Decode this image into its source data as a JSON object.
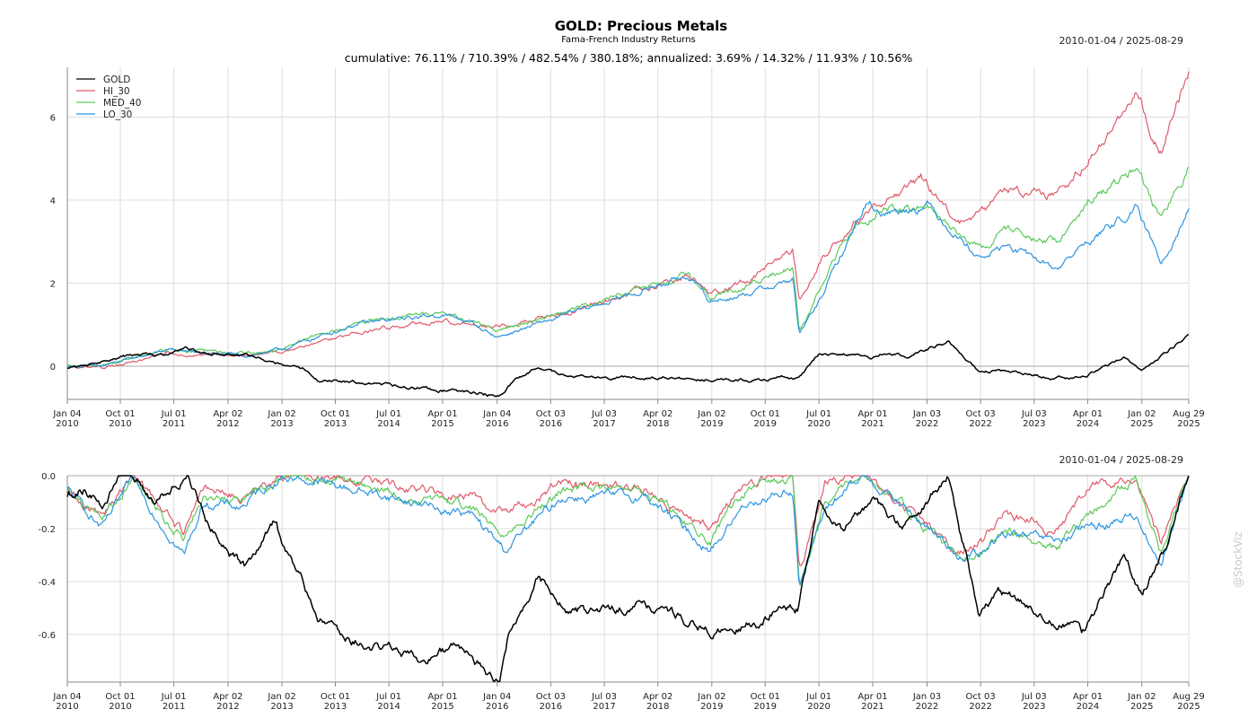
{
  "header": {
    "title": "GOLD: Precious Metals",
    "subtitle": "Fama-French Industry Returns",
    "date_range": "2010-01-04 / 2025-08-29",
    "stats": "cumulative: 76.11% / 710.39% / 482.54% / 380.18%; annualized: 3.69% / 14.32% / 11.93% / 10.56%"
  },
  "watermark": "@StockViz",
  "colors": {
    "GOLD": "#000000",
    "HI_30": "#e05a6a",
    "MED_40": "#5cc95a",
    "LO_30": "#2b95e0",
    "grid": "#dddddd",
    "axis": "#888888"
  },
  "x_ticks": [
    {
      "d": "2010-01-04",
      "l1": "Jan 04",
      "l2": "2010"
    },
    {
      "d": "2010-10-01",
      "l1": "Oct 01",
      "l2": "2010"
    },
    {
      "d": "2011-07-01",
      "l1": "Jul 01",
      "l2": "2011"
    },
    {
      "d": "2012-04-02",
      "l1": "Apr 02",
      "l2": "2012"
    },
    {
      "d": "2013-01-02",
      "l1": "Jan 02",
      "l2": "2013"
    },
    {
      "d": "2013-10-01",
      "l1": "Oct 01",
      "l2": "2013"
    },
    {
      "d": "2014-07-01",
      "l1": "Jul 01",
      "l2": "2014"
    },
    {
      "d": "2015-04-01",
      "l1": "Apr 01",
      "l2": "2015"
    },
    {
      "d": "2016-01-04",
      "l1": "Jan 04",
      "l2": "2016"
    },
    {
      "d": "2016-10-03",
      "l1": "Oct 03",
      "l2": "2016"
    },
    {
      "d": "2017-07-03",
      "l1": "Jul 03",
      "l2": "2017"
    },
    {
      "d": "2018-04-02",
      "l1": "Apr 02",
      "l2": "2018"
    },
    {
      "d": "2019-01-02",
      "l1": "Jan 02",
      "l2": "2019"
    },
    {
      "d": "2019-10-01",
      "l1": "Oct 01",
      "l2": "2019"
    },
    {
      "d": "2020-07-01",
      "l1": "Jul 01",
      "l2": "2020"
    },
    {
      "d": "2021-04-01",
      "l1": "Apr 01",
      "l2": "2021"
    },
    {
      "d": "2022-01-03",
      "l1": "Jan 03",
      "l2": "2022"
    },
    {
      "d": "2022-10-03",
      "l1": "Oct 03",
      "l2": "2022"
    },
    {
      "d": "2023-07-03",
      "l1": "Jul 03",
      "l2": "2023"
    },
    {
      "d": "2024-04-01",
      "l1": "Apr 01",
      "l2": "2024"
    },
    {
      "d": "2025-01-02",
      "l1": "Jan 02",
      "l2": "2025"
    },
    {
      "d": "2025-08-29",
      "l1": "Aug 29",
      "l2": "2025"
    }
  ],
  "chart_data": [
    {
      "type": "line",
      "name": "cumulative",
      "x_range": [
        "2010-01-04",
        "2025-08-29"
      ],
      "ylim": [
        -0.8,
        7.2
      ],
      "yticks": [
        0,
        2,
        4,
        6
      ],
      "ytick_labels": [
        "0",
        "2",
        "4",
        "6"
      ],
      "grid": true,
      "legend": "top-left",
      "series": [
        {
          "name": "GOLD",
          "x": [
            "2010-01-04",
            "2010-07-01",
            "2011-01-03",
            "2011-06-01",
            "2011-09-01",
            "2012-01-03",
            "2012-07-02",
            "2013-01-02",
            "2013-04-15",
            "2013-07-01",
            "2014-01-02",
            "2014-06-02",
            "2014-12-01",
            "2015-06-01",
            "2015-12-01",
            "2016-01-15",
            "2016-03-01",
            "2016-08-01",
            "2016-12-15",
            "2017-06-01",
            "2018-01-02",
            "2018-09-01",
            "2019-01-02",
            "2019-09-03",
            "2020-01-02",
            "2020-03-16",
            "2020-07-01",
            "2020-11-02",
            "2021-04-01",
            "2021-06-01",
            "2021-10-01",
            "2022-04-18",
            "2022-09-27",
            "2023-01-03",
            "2023-07-03",
            "2023-10-02",
            "2024-01-02",
            "2024-04-01",
            "2024-10-01",
            "2025-01-02",
            "2025-04-21",
            "2025-08-29"
          ],
          "y": [
            -0.05,
            0.1,
            0.3,
            0.25,
            0.45,
            0.3,
            0.25,
            0.05,
            -0.05,
            -0.3,
            -0.4,
            -0.45,
            -0.55,
            -0.6,
            -0.7,
            -0.68,
            -0.45,
            0.0,
            -0.25,
            -0.3,
            -0.25,
            -0.3,
            -0.3,
            -0.35,
            -0.25,
            -0.3,
            0.3,
            0.3,
            0.2,
            0.35,
            0.25,
            0.6,
            -0.15,
            -0.1,
            -0.2,
            -0.3,
            -0.3,
            -0.2,
            0.2,
            -0.1,
            0.3,
            0.76
          ]
        },
        {
          "name": "HI_30",
          "x": [
            "2010-01-04",
            "2010-07-01",
            "2011-06-01",
            "2012-01-03",
            "2012-07-02",
            "2013-01-02",
            "2014-01-02",
            "2015-04-01",
            "2015-08-24",
            "2016-01-04",
            "2017-01-03",
            "2018-01-02",
            "2018-09-04",
            "2018-12-24",
            "2019-07-01",
            "2020-02-19",
            "2020-03-23",
            "2020-07-01",
            "2021-01-04",
            "2021-12-01",
            "2022-06-16",
            "2022-10-03",
            "2023-02-01",
            "2023-10-27",
            "2024-04-01",
            "2024-12-02",
            "2025-04-08",
            "2025-08-29"
          ],
          "y": [
            0.0,
            -0.05,
            0.3,
            0.3,
            0.25,
            0.35,
            0.8,
            1.1,
            1.0,
            0.95,
            1.3,
            1.85,
            2.2,
            1.7,
            2.05,
            2.8,
            1.55,
            2.5,
            3.5,
            4.6,
            3.4,
            3.7,
            4.2,
            4.1,
            5.0,
            6.6,
            5.2,
            7.1
          ]
        },
        {
          "name": "MED_40",
          "x": [
            "2010-01-04",
            "2010-07-01",
            "2011-06-01",
            "2012-01-03",
            "2012-07-02",
            "2013-01-02",
            "2014-01-02",
            "2015-04-01",
            "2015-08-24",
            "2016-01-04",
            "2017-01-03",
            "2018-01-02",
            "2018-09-04",
            "2018-12-24",
            "2019-07-01",
            "2020-02-19",
            "2020-03-23",
            "2020-07-01",
            "2021-01-04",
            "2021-06-01",
            "2022-01-03",
            "2022-10-03",
            "2023-02-01",
            "2023-10-27",
            "2024-04-01",
            "2024-12-02",
            "2025-04-08",
            "2025-08-29"
          ],
          "y": [
            0.0,
            0.0,
            0.4,
            0.35,
            0.3,
            0.4,
            1.05,
            1.3,
            1.1,
            0.85,
            1.35,
            1.85,
            2.25,
            1.65,
            1.95,
            2.4,
            0.8,
            1.8,
            3.4,
            3.8,
            3.9,
            2.8,
            3.3,
            3.0,
            4.0,
            4.8,
            3.5,
            4.8
          ]
        },
        {
          "name": "LO_30",
          "x": [
            "2010-01-04",
            "2010-07-01",
            "2011-06-01",
            "2012-01-03",
            "2012-07-02",
            "2013-01-02",
            "2014-01-02",
            "2015-04-01",
            "2015-08-24",
            "2016-01-04",
            "2017-01-03",
            "2018-01-02",
            "2018-09-04",
            "2018-12-24",
            "2019-07-01",
            "2020-02-19",
            "2020-03-23",
            "2020-07-01",
            "2021-01-04",
            "2021-03-01",
            "2021-06-01",
            "2022-01-03",
            "2022-10-03",
            "2023-02-01",
            "2023-10-27",
            "2024-04-01",
            "2024-12-02",
            "2025-04-08",
            "2025-08-29"
          ],
          "y": [
            0.0,
            0.0,
            0.4,
            0.3,
            0.25,
            0.4,
            1.0,
            1.25,
            1.05,
            0.7,
            1.25,
            1.8,
            2.2,
            1.55,
            1.75,
            2.1,
            0.75,
            1.55,
            3.4,
            3.95,
            3.7,
            3.9,
            2.6,
            2.9,
            2.35,
            3.0,
            3.8,
            2.5,
            3.8
          ]
        }
      ]
    },
    {
      "type": "line",
      "name": "drawdown",
      "x_range": [
        "2010-01-04",
        "2025-08-29"
      ],
      "ylim": [
        -0.78,
        0.0
      ],
      "yticks": [
        0.0,
        -0.2,
        -0.4,
        -0.6
      ],
      "ytick_labels": [
        "0.0",
        "-0.2",
        "-0.4",
        "-0.6"
      ],
      "grid": true,
      "series": [
        {
          "name": "GOLD",
          "x": [
            "2010-01-04",
            "2010-04-01",
            "2010-07-01",
            "2010-10-01",
            "2011-01-03",
            "2011-04-01",
            "2011-06-01",
            "2011-09-06",
            "2012-01-03",
            "2012-04-02",
            "2012-07-02",
            "2012-12-03",
            "2013-01-02",
            "2013-04-15",
            "2013-07-01",
            "2014-01-02",
            "2014-07-01",
            "2015-01-02",
            "2015-06-01",
            "2015-12-01",
            "2016-01-15",
            "2016-03-01",
            "2016-08-01",
            "2016-12-15",
            "2017-06-01",
            "2018-01-02",
            "2018-09-03",
            "2019-01-02",
            "2019-09-03",
            "2020-01-02",
            "2020-03-16",
            "2020-07-01",
            "2020-11-02",
            "2021-04-01",
            "2021-09-01",
            "2022-04-18",
            "2022-09-27",
            "2023-01-03",
            "2023-07-03",
            "2023-10-02",
            "2024-01-02",
            "2024-03-01",
            "2024-10-01",
            "2025-01-02",
            "2025-04-21",
            "2025-08-29"
          ],
          "y": [
            -0.08,
            -0.05,
            -0.12,
            0.0,
            -0.02,
            -0.1,
            -0.05,
            0.0,
            -0.2,
            -0.3,
            -0.35,
            -0.16,
            -0.25,
            -0.4,
            -0.55,
            -0.62,
            -0.65,
            -0.7,
            -0.65,
            -0.75,
            -0.78,
            -0.6,
            -0.38,
            -0.5,
            -0.52,
            -0.48,
            -0.55,
            -0.58,
            -0.55,
            -0.48,
            -0.5,
            -0.1,
            -0.2,
            -0.1,
            -0.2,
            0.0,
            -0.52,
            -0.45,
            -0.5,
            -0.55,
            -0.55,
            -0.6,
            -0.3,
            -0.45,
            -0.3,
            0.0
          ]
        },
        {
          "name": "HI_30",
          "x": [
            "2010-01-04",
            "2010-07-01",
            "2010-12-01",
            "2011-08-22",
            "2011-12-01",
            "2012-06-01",
            "2013-01-02",
            "2014-01-02",
            "2015-08-24",
            "2016-02-11",
            "2016-12-01",
            "2018-02-08",
            "2018-12-24",
            "2019-07-01",
            "2020-02-19",
            "2020-03-23",
            "2020-08-03",
            "2021-03-01",
            "2022-06-16",
            "2022-10-12",
            "2023-02-01",
            "2023-10-27",
            "2024-04-01",
            "2024-12-02",
            "2025-04-08",
            "2025-08-29"
          ],
          "y": [
            -0.05,
            -0.15,
            0.0,
            -0.22,
            -0.05,
            -0.08,
            0.0,
            -0.02,
            -0.08,
            -0.15,
            -0.02,
            -0.05,
            -0.2,
            -0.02,
            0.0,
            -0.38,
            -0.03,
            0.0,
            -0.28,
            -0.25,
            -0.15,
            -0.2,
            -0.05,
            0.0,
            -0.25,
            0.0
          ]
        },
        {
          "name": "MED_40",
          "x": [
            "2010-01-04",
            "2010-07-01",
            "2010-12-01",
            "2011-08-22",
            "2011-12-01",
            "2012-06-01",
            "2013-01-02",
            "2014-01-02",
            "2015-08-24",
            "2016-02-11",
            "2016-12-01",
            "2018-02-08",
            "2018-12-24",
            "2019-07-01",
            "2020-02-19",
            "2020-03-23",
            "2020-08-03",
            "2021-03-01",
            "2022-06-16",
            "2022-10-12",
            "2023-02-01",
            "2023-10-27",
            "2024-04-01",
            "2024-12-02",
            "2025-04-08",
            "2025-08-29"
          ],
          "y": [
            -0.05,
            -0.18,
            0.0,
            -0.25,
            -0.08,
            -0.1,
            0.0,
            -0.03,
            -0.12,
            -0.22,
            -0.05,
            -0.06,
            -0.25,
            -0.05,
            0.0,
            -0.42,
            -0.08,
            0.0,
            -0.3,
            -0.28,
            -0.2,
            -0.28,
            -0.15,
            0.0,
            -0.3,
            0.0
          ]
        },
        {
          "name": "LO_30",
          "x": [
            "2010-01-04",
            "2010-07-01",
            "2010-12-01",
            "2011-08-22",
            "2011-12-01",
            "2012-06-01",
            "2013-01-02",
            "2014-01-02",
            "2015-08-24",
            "2016-02-11",
            "2016-12-01",
            "2018-02-08",
            "2018-12-24",
            "2019-07-01",
            "2020-02-19",
            "2020-03-23",
            "2020-08-03",
            "2021-03-01",
            "2022-06-16",
            "2022-10-12",
            "2023-02-01",
            "2023-10-27",
            "2024-04-01",
            "2024-12-02",
            "2025-04-08",
            "2025-08-29"
          ],
          "y": [
            -0.05,
            -0.2,
            -0.02,
            -0.3,
            -0.1,
            -0.12,
            0.0,
            -0.05,
            -0.15,
            -0.28,
            -0.08,
            -0.08,
            -0.28,
            -0.1,
            -0.05,
            -0.42,
            -0.12,
            0.0,
            -0.3,
            -0.3,
            -0.22,
            -0.25,
            -0.2,
            -0.15,
            -0.33,
            0.0
          ]
        }
      ]
    }
  ]
}
